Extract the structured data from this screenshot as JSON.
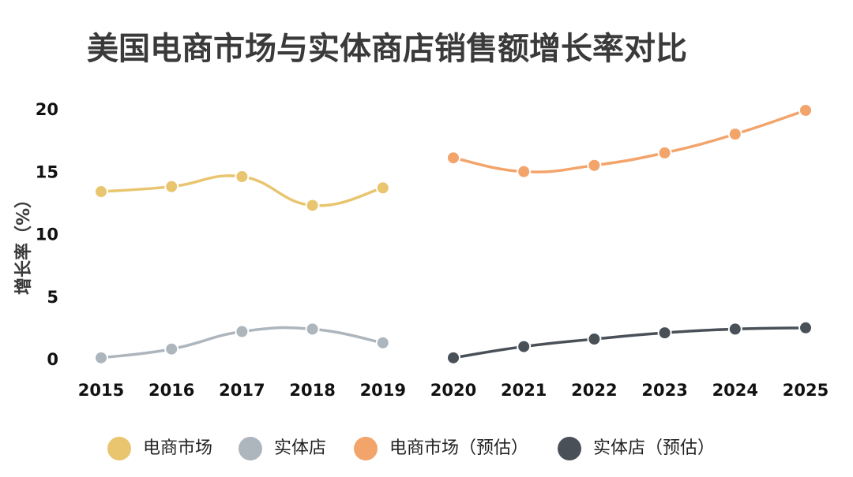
{
  "chart_data": {
    "type": "line",
    "title": "美国电商市场与实体商店销售额增长率对比",
    "xlabel": "",
    "ylabel": "增长率（%）",
    "ylim": [
      0,
      20
    ],
    "yticks": [
      0,
      5,
      10,
      15,
      20
    ],
    "categories": [
      "2015",
      "2016",
      "2017",
      "2018",
      "2019",
      "2020",
      "2021",
      "2022",
      "2023",
      "2024",
      "2025"
    ],
    "grid": false,
    "legend_position": "bottom",
    "series": [
      {
        "name": "电商市场",
        "color": "#E8C56E",
        "x": [
          "2015",
          "2016",
          "2017",
          "2018",
          "2019"
        ],
        "values": [
          13.5,
          13.9,
          14.7,
          12.4,
          13.8
        ]
      },
      {
        "name": "实体店",
        "color": "#ADB5BD",
        "x": [
          "2015",
          "2016",
          "2017",
          "2018",
          "2019"
        ],
        "values": [
          0.2,
          0.9,
          2.3,
          2.5,
          1.4
        ]
      },
      {
        "name": "电商市场（预估）",
        "color": "#F2A46B",
        "x": [
          "2020",
          "2021",
          "2022",
          "2023",
          "2024",
          "2025"
        ],
        "values": [
          16.2,
          15.1,
          15.6,
          16.6,
          18.1,
          20.0
        ]
      },
      {
        "name": "实体店（预估）",
        "color": "#495057",
        "x": [
          "2020",
          "2021",
          "2022",
          "2023",
          "2024",
          "2025"
        ],
        "values": [
          0.2,
          1.1,
          1.7,
          2.2,
          2.5,
          2.6
        ]
      }
    ]
  }
}
